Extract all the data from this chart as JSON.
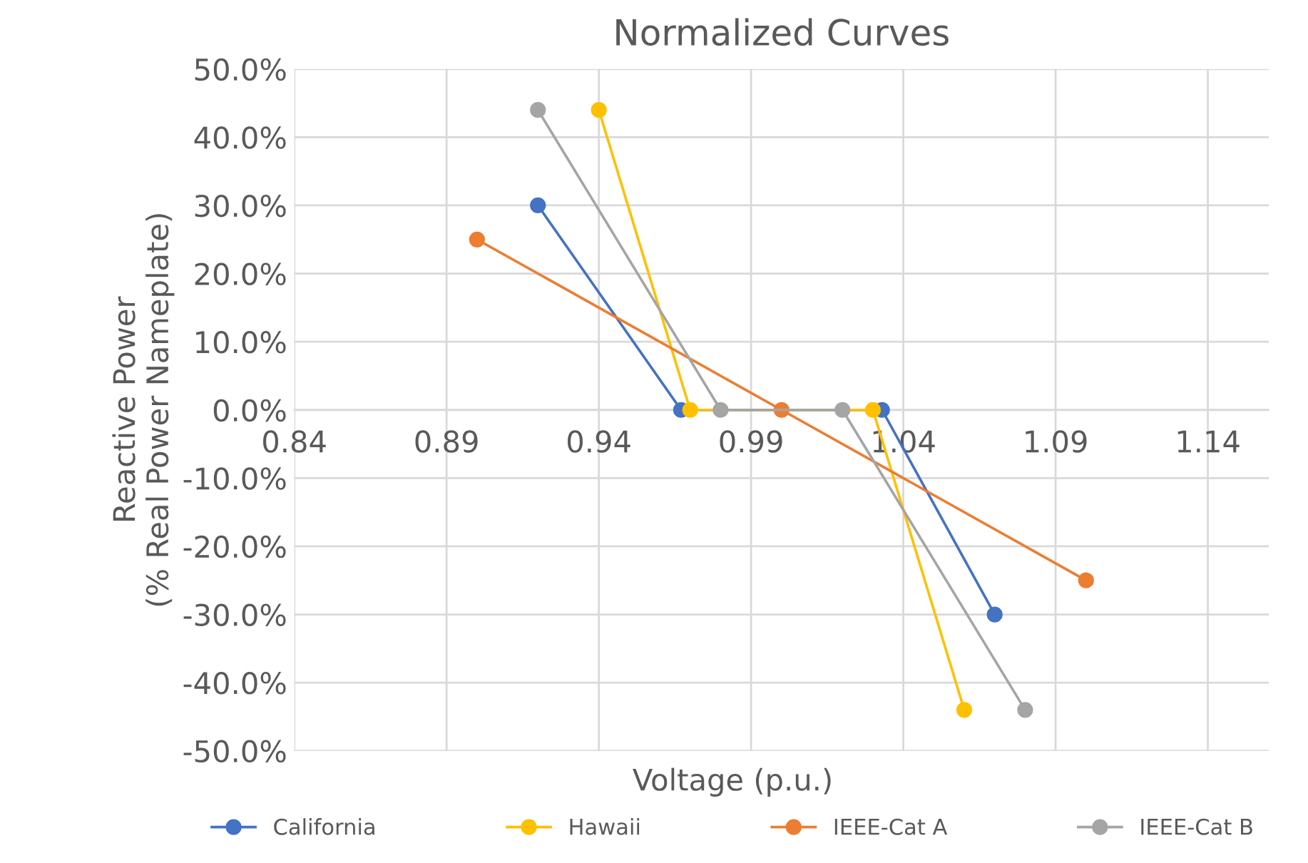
{
  "chart_data": {
    "type": "line",
    "title": "Normalized Curves",
    "xlabel": "Voltage (p.u.)",
    "ylabel": "Reactive Power\n(% Real Power Nameplate)",
    "series": [
      {
        "name": "California",
        "color": "#4472c4",
        "x": [
          0.92,
          0.967,
          1.033,
          1.07
        ],
        "values": [
          30,
          0,
          0,
          -30
        ]
      },
      {
        "name": "Hawaii",
        "color": "#ffc000",
        "x": [
          0.94,
          0.97,
          1.03,
          1.06
        ],
        "values": [
          44,
          0,
          0,
          -44
        ]
      },
      {
        "name": "IEEE-Cat A",
        "color": "#ed7d31",
        "x": [
          0.9,
          1.0,
          1.1
        ],
        "values": [
          25,
          0,
          -25
        ]
      },
      {
        "name": "IEEE-Cat B",
        "color": "#a5a5a5",
        "x": [
          0.92,
          0.98,
          1.02,
          1.08
        ],
        "values": [
          44,
          0,
          0,
          -44
        ]
      }
    ],
    "xlim": [
      0.84,
      1.16
    ],
    "xticks": [
      0.84,
      0.89,
      0.94,
      0.99,
      1.04,
      1.09,
      1.14
    ],
    "ylim": [
      -50,
      50
    ],
    "yticks": [
      {
        "value": -50,
        "label": "-50.0%"
      },
      {
        "value": -40,
        "label": "-40.0%"
      },
      {
        "value": -30,
        "label": "-30.0%"
      },
      {
        "value": -20,
        "label": "-20.0%"
      },
      {
        "value": -10,
        "label": "-10.0%"
      },
      {
        "value": 0,
        "label": "0.0%"
      },
      {
        "value": 10,
        "label": "10.0%"
      },
      {
        "value": 20,
        "label": "20.0%"
      },
      {
        "value": 30,
        "label": "30.0%"
      },
      {
        "value": 40,
        "label": "40.0%"
      },
      {
        "value": 50,
        "label": "50.0%"
      }
    ],
    "grid": true,
    "legend": "bottom",
    "marker": "circle",
    "line_style": "solid"
  }
}
